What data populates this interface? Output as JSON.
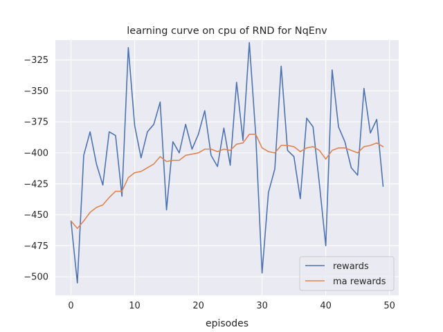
{
  "chart_data": {
    "type": "line",
    "title": "learning curve on cpu of RND for NqEnv",
    "xlabel": "episodes",
    "ylabel": "",
    "xlim": [
      -2.45,
      51.45
    ],
    "ylim": [
      -515,
      -309
    ],
    "xticks": [
      0,
      10,
      20,
      30,
      40,
      50
    ],
    "yticks": [
      -500,
      -475,
      -450,
      -425,
      -400,
      -375,
      -350,
      -325
    ],
    "grid": true,
    "legend_position": "lower-right",
    "series": [
      {
        "name": "rewards",
        "color": "#4c72b0",
        "x": [
          0,
          1,
          2,
          3,
          4,
          5,
          6,
          7,
          8,
          9,
          10,
          11,
          12,
          13,
          14,
          15,
          16,
          17,
          18,
          19,
          20,
          21,
          22,
          23,
          24,
          25,
          26,
          27,
          28,
          29,
          30,
          31,
          32,
          33,
          34,
          35,
          36,
          37,
          38,
          39,
          40,
          41,
          42,
          43,
          44,
          45,
          46,
          47,
          48,
          49
        ],
        "values": [
          -455,
          -505,
          -402,
          -383,
          -409,
          -426,
          -383,
          -386,
          -435,
          -315,
          -378,
          -404,
          -383,
          -377,
          -359,
          -446,
          -391,
          -400,
          -377,
          -397,
          -385,
          -366,
          -402,
          -411,
          -380,
          -410,
          -343,
          -390,
          -311,
          -385,
          -497,
          -432,
          -413,
          -330,
          -398,
          -403,
          -437,
          -372,
          -379,
          -425,
          -475,
          -333,
          -379,
          -391,
          -412,
          -418,
          -348,
          -384,
          -373,
          -427
        ]
      },
      {
        "name": "ma rewards",
        "color": "#dd8452",
        "x": [
          0,
          1,
          2,
          3,
          4,
          5,
          6,
          7,
          8,
          9,
          10,
          11,
          12,
          13,
          14,
          15,
          16,
          17,
          18,
          19,
          20,
          21,
          22,
          23,
          24,
          25,
          26,
          27,
          28,
          29,
          30,
          31,
          32,
          33,
          34,
          35,
          36,
          37,
          38,
          39,
          40,
          41,
          42,
          43,
          44,
          45,
          46,
          47,
          48,
          49
        ],
        "values": [
          -455,
          -461,
          -455,
          -448,
          -444,
          -442,
          -436,
          -431,
          -431,
          -420,
          -416,
          -415,
          -412,
          -409,
          -403,
          -407,
          -406,
          -406,
          -402,
          -401,
          -400,
          -397,
          -397,
          -399,
          -397,
          -398,
          -393,
          -392,
          -385,
          -385,
          -396,
          -399,
          -400,
          -394,
          -394,
          -395,
          -399,
          -396,
          -395,
          -398,
          -405,
          -398,
          -396,
          -396,
          -398,
          -400,
          -395,
          -394,
          -392,
          -395
        ]
      }
    ]
  }
}
